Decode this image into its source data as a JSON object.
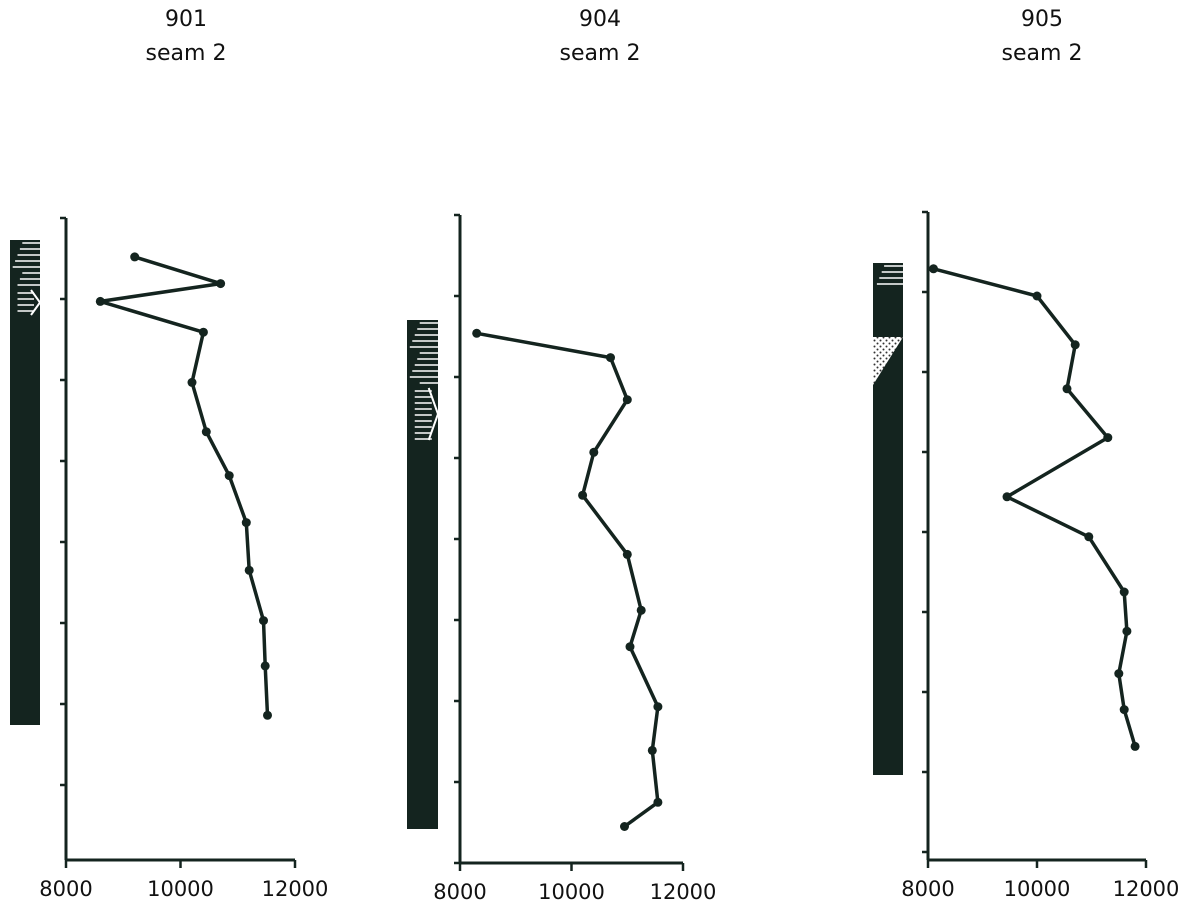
{
  "chart_data": [
    {
      "type": "line",
      "title": "901",
      "subtitle": "seam 2",
      "xlabel": "",
      "ylabel": "",
      "xlim": [
        8000,
        12000
      ],
      "x_ticks": [
        "8000",
        "10000",
        "12000"
      ],
      "grid": false,
      "log_x": [
        9200,
        10700,
        8600,
        10400,
        10200,
        10450,
        10850,
        11150,
        11200,
        11450,
        11480,
        11520
      ],
      "depth": [
        0.48,
        0.81,
        1.03,
        1.41,
        2.03,
        2.64,
        3.18,
        3.76,
        4.35,
        4.97,
        5.53,
        6.14
      ]
    },
    {
      "type": "line",
      "title": "904",
      "subtitle": "seam 2",
      "xlabel": "",
      "ylabel": "",
      "xlim": [
        8000,
        12000
      ],
      "x_ticks": [
        "8000",
        "10000",
        "12000"
      ],
      "grid": false,
      "log_x": [
        8300,
        10700,
        11000,
        10400,
        10200,
        11000,
        11250,
        11050,
        11550,
        11450,
        11550,
        10950
      ],
      "depth": [
        1.46,
        1.76,
        2.28,
        2.93,
        3.46,
        4.19,
        4.88,
        5.33,
        6.07,
        6.61,
        7.25,
        7.55
      ]
    },
    {
      "type": "line",
      "title": "905",
      "subtitle": "seam 2",
      "xlabel": "",
      "ylabel": "",
      "xlim": [
        8000,
        12000
      ],
      "x_ticks": [
        "8000",
        "10000",
        "12000"
      ],
      "grid": false,
      "log_x": [
        8100,
        10000,
        10700,
        10550,
        11300,
        9450,
        10950,
        11600,
        11650,
        11500,
        11600,
        11800
      ],
      "depth": [
        0.71,
        1.05,
        1.66,
        2.21,
        2.82,
        3.56,
        4.06,
        4.75,
        5.24,
        5.77,
        6.22,
        6.68
      ]
    }
  ]
}
